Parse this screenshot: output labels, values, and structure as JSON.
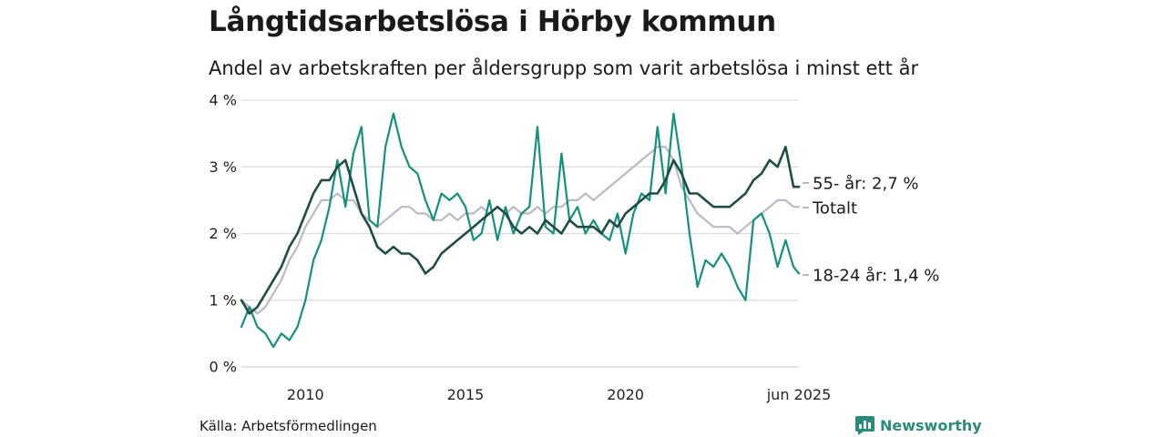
{
  "title": "Långtidsarbetslösa i Hörby kommun",
  "subtitle": "Andel av arbetskraften per åldersgrupp som varit arbetslösa i minst ett år",
  "source": "Källa: Arbetsförmedlingen",
  "brand": {
    "name": "Newsworthy",
    "icon": "newsworthy-logo-icon",
    "color": "#2a8c78"
  },
  "chart_data": {
    "type": "line",
    "x_start": "2008-01",
    "x_end": "2025-06",
    "xlim": [
      "2008-01",
      "2025-06"
    ],
    "ylim": [
      0,
      4
    ],
    "y_ticks": [
      {
        "value": 0,
        "label": "0 %"
      },
      {
        "value": 1,
        "label": "1 %"
      },
      {
        "value": 2,
        "label": "2 %"
      },
      {
        "value": 3,
        "label": "3 %"
      },
      {
        "value": 4,
        "label": "4 %"
      }
    ],
    "x_ticks": [
      {
        "value": "2010",
        "label": "2010"
      },
      {
        "value": "2015",
        "label": "2015"
      },
      {
        "value": "2020",
        "label": "2020"
      },
      {
        "value": "2025-06",
        "label": "jun 2025"
      }
    ],
    "grid": "horizontal",
    "legend": "direct labels at right end of lines",
    "series": [
      {
        "label": "Totalt",
        "color": "#bcb8c6",
        "width": 2.2,
        "points": [
          [
            "2008-01",
            1.0
          ],
          [
            "2008-04",
            0.9
          ],
          [
            "2008-07",
            0.8
          ],
          [
            "2008-10",
            0.9
          ],
          [
            "2009-01",
            1.1
          ],
          [
            "2009-04",
            1.3
          ],
          [
            "2009-07",
            1.6
          ],
          [
            "2009-10",
            1.8
          ],
          [
            "2010-01",
            2.1
          ],
          [
            "2010-04",
            2.3
          ],
          [
            "2010-07",
            2.5
          ],
          [
            "2010-10",
            2.5
          ],
          [
            "2011-01",
            2.6
          ],
          [
            "2011-04",
            2.5
          ],
          [
            "2011-07",
            2.5
          ],
          [
            "2011-10",
            2.3
          ],
          [
            "2012-01",
            2.2
          ],
          [
            "2012-04",
            2.1
          ],
          [
            "2012-07",
            2.2
          ],
          [
            "2012-10",
            2.3
          ],
          [
            "2013-01",
            2.4
          ],
          [
            "2013-04",
            2.4
          ],
          [
            "2013-07",
            2.3
          ],
          [
            "2013-10",
            2.3
          ],
          [
            "2014-01",
            2.2
          ],
          [
            "2014-04",
            2.2
          ],
          [
            "2014-07",
            2.3
          ],
          [
            "2014-10",
            2.2
          ],
          [
            "2015-01",
            2.3
          ],
          [
            "2015-04",
            2.3
          ],
          [
            "2015-07",
            2.4
          ],
          [
            "2015-10",
            2.3
          ],
          [
            "2016-01",
            2.4
          ],
          [
            "2016-04",
            2.3
          ],
          [
            "2016-07",
            2.4
          ],
          [
            "2016-10",
            2.3
          ],
          [
            "2017-01",
            2.3
          ],
          [
            "2017-04",
            2.4
          ],
          [
            "2017-07",
            2.3
          ],
          [
            "2017-10",
            2.4
          ],
          [
            "2018-01",
            2.4
          ],
          [
            "2018-04",
            2.5
          ],
          [
            "2018-07",
            2.5
          ],
          [
            "2018-10",
            2.6
          ],
          [
            "2019-01",
            2.5
          ],
          [
            "2019-04",
            2.6
          ],
          [
            "2019-07",
            2.7
          ],
          [
            "2019-10",
            2.8
          ],
          [
            "2020-01",
            2.9
          ],
          [
            "2020-04",
            3.0
          ],
          [
            "2020-07",
            3.1
          ],
          [
            "2020-10",
            3.2
          ],
          [
            "2021-01",
            3.3
          ],
          [
            "2021-04",
            3.3
          ],
          [
            "2021-07",
            3.1
          ],
          [
            "2021-10",
            2.7
          ],
          [
            "2022-01",
            2.5
          ],
          [
            "2022-04",
            2.3
          ],
          [
            "2022-07",
            2.2
          ],
          [
            "2022-10",
            2.1
          ],
          [
            "2023-01",
            2.1
          ],
          [
            "2023-04",
            2.1
          ],
          [
            "2023-07",
            2.0
          ],
          [
            "2023-10",
            2.1
          ],
          [
            "2024-01",
            2.2
          ],
          [
            "2024-04",
            2.3
          ],
          [
            "2024-07",
            2.4
          ],
          [
            "2024-10",
            2.5
          ],
          [
            "2025-01",
            2.5
          ],
          [
            "2025-04",
            2.4
          ],
          [
            "2025-06",
            2.4
          ]
        ],
        "end_label": "Totalt"
      },
      {
        "label": "18-24 år",
        "color": "#14907e",
        "width": 2.2,
        "points": [
          [
            "2008-01",
            0.6
          ],
          [
            "2008-04",
            0.9
          ],
          [
            "2008-07",
            0.6
          ],
          [
            "2008-10",
            0.5
          ],
          [
            "2009-01",
            0.3
          ],
          [
            "2009-04",
            0.5
          ],
          [
            "2009-07",
            0.4
          ],
          [
            "2009-10",
            0.6
          ],
          [
            "2010-01",
            1.0
          ],
          [
            "2010-04",
            1.6
          ],
          [
            "2010-07",
            1.9
          ],
          [
            "2010-10",
            2.4
          ],
          [
            "2011-01",
            3.1
          ],
          [
            "2011-04",
            2.4
          ],
          [
            "2011-07",
            3.2
          ],
          [
            "2011-10",
            3.6
          ],
          [
            "2012-01",
            2.2
          ],
          [
            "2012-04",
            2.1
          ],
          [
            "2012-07",
            3.3
          ],
          [
            "2012-10",
            3.8
          ],
          [
            "2013-01",
            3.3
          ],
          [
            "2013-04",
            3.0
          ],
          [
            "2013-07",
            2.9
          ],
          [
            "2013-10",
            2.5
          ],
          [
            "2014-01",
            2.2
          ],
          [
            "2014-04",
            2.6
          ],
          [
            "2014-07",
            2.5
          ],
          [
            "2014-10",
            2.6
          ],
          [
            "2015-01",
            2.4
          ],
          [
            "2015-04",
            1.9
          ],
          [
            "2015-07",
            2.0
          ],
          [
            "2015-10",
            2.5
          ],
          [
            "2016-01",
            1.9
          ],
          [
            "2016-04",
            2.4
          ],
          [
            "2016-07",
            2.0
          ],
          [
            "2016-10",
            2.3
          ],
          [
            "2017-01",
            2.4
          ],
          [
            "2017-04",
            3.6
          ],
          [
            "2017-07",
            2.1
          ],
          [
            "2017-10",
            2.0
          ],
          [
            "2018-01",
            3.2
          ],
          [
            "2018-04",
            2.2
          ],
          [
            "2018-07",
            2.4
          ],
          [
            "2018-10",
            2.0
          ],
          [
            "2019-01",
            2.2
          ],
          [
            "2019-04",
            2.0
          ],
          [
            "2019-07",
            1.9
          ],
          [
            "2019-10",
            2.3
          ],
          [
            "2020-01",
            1.7
          ],
          [
            "2020-04",
            2.3
          ],
          [
            "2020-07",
            2.6
          ],
          [
            "2020-10",
            2.5
          ],
          [
            "2021-01",
            3.6
          ],
          [
            "2021-04",
            2.6
          ],
          [
            "2021-07",
            3.8
          ],
          [
            "2021-10",
            3.0
          ],
          [
            "2022-01",
            2.0
          ],
          [
            "2022-04",
            1.2
          ],
          [
            "2022-07",
            1.6
          ],
          [
            "2022-10",
            1.5
          ],
          [
            "2023-01",
            1.7
          ],
          [
            "2023-04",
            1.5
          ],
          [
            "2023-07",
            1.2
          ],
          [
            "2023-10",
            1.0
          ],
          [
            "2024-01",
            2.2
          ],
          [
            "2024-04",
            2.3
          ],
          [
            "2024-07",
            2.0
          ],
          [
            "2024-10",
            1.5
          ],
          [
            "2025-01",
            1.9
          ],
          [
            "2025-04",
            1.5
          ],
          [
            "2025-06",
            1.4
          ]
        ],
        "end_label": "18-24 år: 1,4 %"
      },
      {
        "label": "55- år",
        "color": "#1f4d45",
        "width": 2.6,
        "points": [
          [
            "2008-01",
            1.0
          ],
          [
            "2008-04",
            0.8
          ],
          [
            "2008-07",
            0.9
          ],
          [
            "2008-10",
            1.1
          ],
          [
            "2009-01",
            1.3
          ],
          [
            "2009-04",
            1.5
          ],
          [
            "2009-07",
            1.8
          ],
          [
            "2009-10",
            2.0
          ],
          [
            "2010-01",
            2.3
          ],
          [
            "2010-04",
            2.6
          ],
          [
            "2010-07",
            2.8
          ],
          [
            "2010-10",
            2.8
          ],
          [
            "2011-01",
            3.0
          ],
          [
            "2011-04",
            3.1
          ],
          [
            "2011-07",
            2.7
          ],
          [
            "2011-10",
            2.3
          ],
          [
            "2012-01",
            2.1
          ],
          [
            "2012-04",
            1.8
          ],
          [
            "2012-07",
            1.7
          ],
          [
            "2012-10",
            1.8
          ],
          [
            "2013-01",
            1.7
          ],
          [
            "2013-04",
            1.7
          ],
          [
            "2013-07",
            1.6
          ],
          [
            "2013-10",
            1.4
          ],
          [
            "2014-01",
            1.5
          ],
          [
            "2014-04",
            1.7
          ],
          [
            "2014-07",
            1.8
          ],
          [
            "2014-10",
            1.9
          ],
          [
            "2015-01",
            2.0
          ],
          [
            "2015-04",
            2.1
          ],
          [
            "2015-07",
            2.2
          ],
          [
            "2015-10",
            2.3
          ],
          [
            "2016-01",
            2.4
          ],
          [
            "2016-04",
            2.3
          ],
          [
            "2016-07",
            2.1
          ],
          [
            "2016-10",
            2.0
          ],
          [
            "2017-01",
            2.1
          ],
          [
            "2017-04",
            2.0
          ],
          [
            "2017-07",
            2.2
          ],
          [
            "2017-10",
            2.1
          ],
          [
            "2018-01",
            2.0
          ],
          [
            "2018-04",
            2.2
          ],
          [
            "2018-07",
            2.1
          ],
          [
            "2018-10",
            2.1
          ],
          [
            "2019-01",
            2.1
          ],
          [
            "2019-04",
            2.0
          ],
          [
            "2019-07",
            2.2
          ],
          [
            "2019-10",
            2.1
          ],
          [
            "2020-01",
            2.3
          ],
          [
            "2020-04",
            2.4
          ],
          [
            "2020-07",
            2.5
          ],
          [
            "2020-10",
            2.6
          ],
          [
            "2021-01",
            2.6
          ],
          [
            "2021-04",
            2.8
          ],
          [
            "2021-07",
            3.1
          ],
          [
            "2021-10",
            2.9
          ],
          [
            "2022-01",
            2.6
          ],
          [
            "2022-04",
            2.6
          ],
          [
            "2022-07",
            2.5
          ],
          [
            "2022-10",
            2.4
          ],
          [
            "2023-01",
            2.4
          ],
          [
            "2023-04",
            2.4
          ],
          [
            "2023-07",
            2.5
          ],
          [
            "2023-10",
            2.6
          ],
          [
            "2024-01",
            2.8
          ],
          [
            "2024-04",
            2.9
          ],
          [
            "2024-07",
            3.1
          ],
          [
            "2024-10",
            3.0
          ],
          [
            "2025-01",
            3.3
          ],
          [
            "2025-04",
            2.7
          ],
          [
            "2025-06",
            2.7
          ]
        ],
        "end_label": "55- år: 2,7 %"
      }
    ],
    "end_label_order": [
      "55- år",
      "Totalt",
      "18-24 år"
    ]
  }
}
